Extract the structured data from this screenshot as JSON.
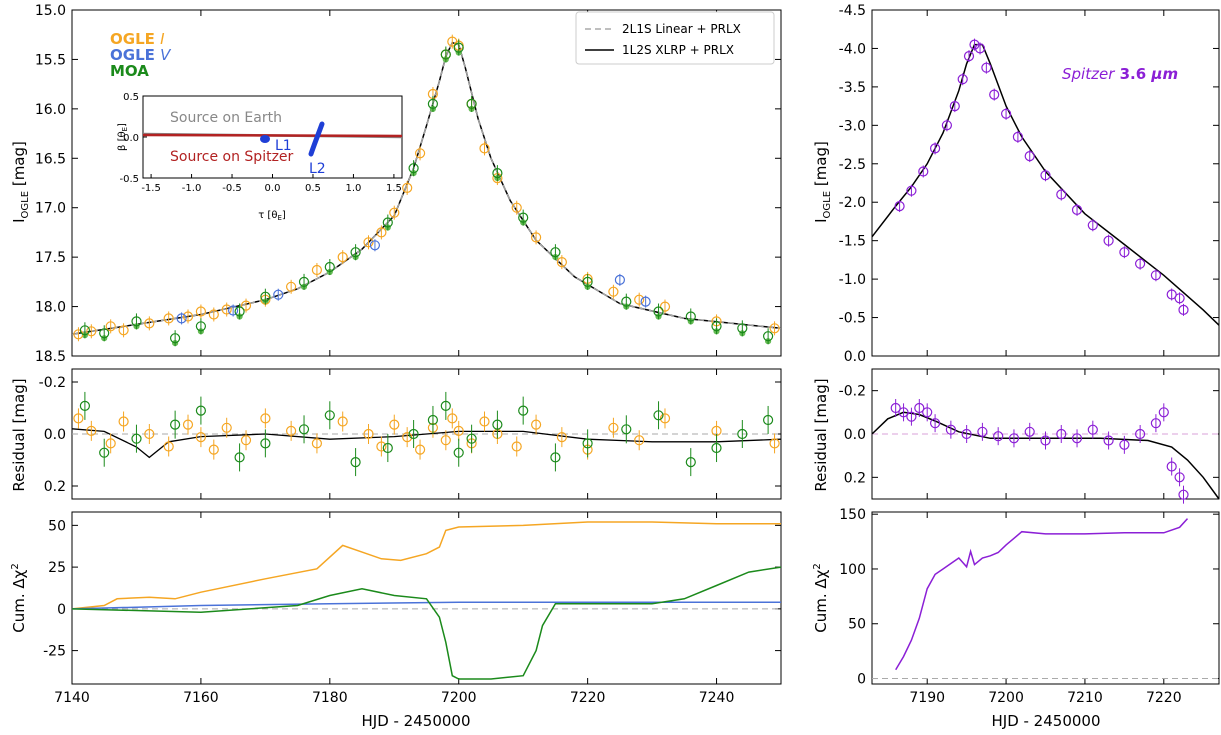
{
  "colors": {
    "ogle_i": "#f5a623",
    "ogle_v": "#4a72d8",
    "moa": "#1b8a1b",
    "moa_light": "#66bb55",
    "spitzer": "#8b1fd6",
    "model": "#000000",
    "zero_line": "#aaaaaa",
    "inset_earth": "#888888",
    "inset_spitzer": "#b22222",
    "inset_lens": "#1f3fd6"
  },
  "labels": {
    "ylabel_mag_left": "I",
    "ylabel_mag_sub": "OGLE",
    "ylabel_mag_unit": " [mag]",
    "ylabel_resid": "Residual [mag]",
    "ylabel_chi": "Cum. Δχ",
    "ylabel_chi_sup": "2",
    "xlabel": "HJD - 2450000",
    "spitzer_label_italic": "Spitzer",
    "spitzer_label_bold": " 3.6 ",
    "spitzer_label_unit": "μm"
  },
  "legend_data": {
    "ogle_i_name": "OGLE ",
    "ogle_i_band": "I",
    "ogle_v_name": "OGLE ",
    "ogle_v_band": "V",
    "moa_name": "MOA"
  },
  "legend_models": {
    "model_2l1s": "2L1S Linear + PRLX",
    "model_1l2s": "1L2S XLRP + PRLX"
  },
  "inset": {
    "ylabel": "β [θ",
    "ylabel_sub": "E",
    "xlabel": "τ [θ",
    "xlabel_sub": "E",
    "label_earth": "Source on Earth",
    "label_spitzer": "Source on Spitzer",
    "label_l1": "L1",
    "label_l2": "L2"
  },
  "chart_data": [
    {
      "type": "scatter",
      "panel": "ground light curve",
      "xlim": [
        7140,
        7250
      ],
      "ylim": [
        18.5,
        15.0
      ],
      "x_ticks": [
        7140,
        7160,
        7180,
        7200,
        7220,
        7240
      ],
      "y_ticks": [
        15.0,
        15.5,
        16.0,
        16.5,
        17.0,
        17.5,
        18.0,
        18.5
      ],
      "y_inverted": true,
      "model_1l2s": {
        "x": [
          7140,
          7150,
          7160,
          7170,
          7175,
          7180,
          7185,
          7190,
          7193,
          7195,
          7197,
          7198,
          7199,
          7200,
          7201,
          7203,
          7205,
          7208,
          7212,
          7218,
          7225,
          7235,
          7250
        ],
        "y": [
          18.28,
          18.18,
          18.08,
          17.93,
          17.82,
          17.65,
          17.42,
          17.08,
          16.6,
          16.17,
          15.72,
          15.47,
          15.33,
          15.35,
          15.58,
          16.1,
          16.5,
          16.93,
          17.33,
          17.7,
          17.97,
          18.12,
          18.22
        ]
      },
      "ogle_i_points": {
        "x": [
          7141,
          7143,
          7146,
          7148,
          7152,
          7155,
          7158,
          7160,
          7162,
          7164,
          7167,
          7170,
          7174,
          7178,
          7182,
          7186,
          7188,
          7190,
          7192,
          7194,
          7196,
          7198,
          7199,
          7200,
          7202,
          7204,
          7206,
          7209,
          7212,
          7216,
          7220,
          7224,
          7228,
          7232,
          7240,
          7249
        ],
        "y": [
          18.28,
          18.25,
          18.2,
          18.24,
          18.17,
          18.12,
          18.1,
          18.05,
          18.08,
          18.03,
          17.99,
          17.93,
          17.8,
          17.63,
          17.5,
          17.35,
          17.25,
          17.05,
          16.8,
          16.45,
          15.85,
          15.45,
          15.32,
          15.36,
          15.95,
          16.4,
          16.7,
          17.0,
          17.3,
          17.55,
          17.72,
          17.85,
          17.93,
          18.0,
          18.15,
          18.22
        ]
      },
      "ogle_v_points": {
        "x": [
          7157,
          7165,
          7172,
          7187,
          7225,
          7229
        ],
        "y": [
          18.12,
          18.04,
          17.88,
          17.38,
          17.73,
          17.95
        ]
      },
      "moa_points": {
        "x": [
          7142,
          7145,
          7150,
          7156,
          7160,
          7166,
          7170,
          7176,
          7180,
          7184,
          7189,
          7193,
          7196,
          7198,
          7200,
          7202,
          7206,
          7210,
          7215,
          7220,
          7226,
          7231,
          7236,
          7240,
          7244,
          7248
        ],
        "y": [
          18.24,
          18.27,
          18.15,
          18.32,
          18.2,
          18.05,
          17.9,
          17.75,
          17.6,
          17.45,
          17.15,
          16.6,
          15.95,
          15.45,
          15.38,
          15.95,
          16.65,
          17.1,
          17.45,
          17.75,
          17.95,
          18.05,
          18.1,
          18.2,
          18.22,
          18.3
        ]
      }
    },
    {
      "type": "line",
      "panel": "ground residuals",
      "xlim": [
        7140,
        7250
      ],
      "ylim": [
        0.25,
        -0.25
      ],
      "y_ticks": [
        -0.2,
        0.0,
        0.2
      ],
      "y_inverted": true,
      "model_difference": {
        "x": [
          7140,
          7145,
          7150,
          7152,
          7155,
          7160,
          7170,
          7180,
          7190,
          7200,
          7210,
          7220,
          7230,
          7240,
          7250
        ],
        "y": [
          -0.02,
          -0.01,
          0.05,
          0.09,
          0.03,
          0.01,
          0.0,
          0.02,
          0.01,
          -0.01,
          -0.01,
          0.02,
          0.03,
          0.03,
          0.02
        ]
      }
    },
    {
      "type": "line",
      "panel": "ground cumulative delta chi2",
      "xlim": [
        7140,
        7250
      ],
      "ylim": [
        -45,
        58
      ],
      "y_ticks": [
        -25,
        0,
        25,
        50
      ],
      "series": [
        {
          "name": "OGLE I",
          "x": [
            7140,
            7145,
            7147,
            7152,
            7156,
            7160,
            7170,
            7178,
            7182,
            7185,
            7188,
            7191,
            7195,
            7197,
            7198,
            7200,
            7210,
            7220,
            7230,
            7240,
            7250
          ],
          "y": [
            0,
            2,
            6,
            7,
            6,
            10,
            18,
            24,
            38,
            34,
            30,
            29,
            33,
            37,
            47,
            49,
            50,
            52,
            52,
            51,
            51
          ]
        },
        {
          "name": "OGLE V",
          "x": [
            7140,
            7160,
            7180,
            7200,
            7220,
            7250
          ],
          "y": [
            0,
            2,
            3,
            4,
            4,
            4
          ]
        },
        {
          "name": "MOA",
          "x": [
            7140,
            7160,
            7175,
            7180,
            7185,
            7190,
            7195,
            7197,
            7198,
            7199,
            7200,
            7205,
            7210,
            7212,
            7213,
            7215,
            7230,
            7235,
            7240,
            7245,
            7250
          ],
          "y": [
            0,
            -2,
            2,
            8,
            12,
            8,
            6,
            -5,
            -20,
            -40,
            -42,
            -42,
            -40,
            -25,
            -10,
            3,
            3,
            6,
            14,
            22,
            25
          ]
        }
      ]
    },
    {
      "type": "scatter",
      "panel": "Spitzer light curve",
      "xlim": [
        7183,
        7227
      ],
      "ylim": [
        0.0,
        -4.5
      ],
      "x_ticks": [
        7190,
        7200,
        7210,
        7220
      ],
      "y_ticks": [
        0.0,
        -0.5,
        -1.0,
        -1.5,
        -2.0,
        -2.5,
        -3.0,
        -3.5,
        -4.0,
        -4.5
      ],
      "y_inverted": true,
      "model": {
        "x": [
          7183,
          7186,
          7188,
          7190,
          7192,
          7194,
          7195,
          7196,
          7197,
          7198,
          7200,
          7202,
          7205,
          7210,
          7215,
          7220,
          7225,
          7227
        ],
        "y": [
          -1.55,
          -1.95,
          -2.2,
          -2.5,
          -2.9,
          -3.45,
          -3.8,
          -4.05,
          -4.05,
          -3.8,
          -3.25,
          -2.85,
          -2.4,
          -1.85,
          -1.45,
          -1.05,
          -0.6,
          -0.4
        ]
      },
      "points": {
        "x": [
          7186.5,
          7188,
          7189.5,
          7191,
          7192.5,
          7193.5,
          7194.5,
          7195.3,
          7196,
          7196.7,
          7197.5,
          7198.5,
          7200,
          7201.5,
          7203,
          7205,
          7207,
          7209,
          7211,
          7213,
          7215,
          7217,
          7219,
          7221,
          7222,
          7222.5
        ],
        "y": [
          -1.95,
          -2.15,
          -2.4,
          -2.7,
          -3.0,
          -3.25,
          -3.6,
          -3.9,
          -4.05,
          -4.0,
          -3.75,
          -3.4,
          -3.15,
          -2.85,
          -2.6,
          -2.35,
          -2.1,
          -1.9,
          -1.7,
          -1.5,
          -1.35,
          -1.2,
          -1.05,
          -0.8,
          -0.75,
          -0.6
        ]
      }
    },
    {
      "type": "line",
      "panel": "Spitzer residuals",
      "xlim": [
        7183,
        7227
      ],
      "ylim": [
        0.3,
        -0.3
      ],
      "y_ticks": [
        -0.2,
        0.0,
        0.2
      ],
      "y_inverted": true,
      "model_difference": {
        "x": [
          7183,
          7185,
          7187,
          7189,
          7191,
          7194,
          7198,
          7205,
          7212,
          7218,
          7221,
          7223,
          7225,
          7227
        ],
        "y": [
          0.0,
          -0.07,
          -0.1,
          -0.09,
          -0.06,
          -0.01,
          0.02,
          0.02,
          0.02,
          0.03,
          0.06,
          0.12,
          0.2,
          0.3
        ]
      },
      "points": {
        "x": [
          7186,
          7187,
          7188,
          7189,
          7190,
          7191,
          7193,
          7195,
          7197,
          7199,
          7201,
          7203,
          7205,
          7207,
          7209,
          7211,
          7213,
          7215,
          7217,
          7219,
          7220,
          7221,
          7222,
          7222.5
        ],
        "y": [
          -0.12,
          -0.1,
          -0.08,
          -0.12,
          -0.1,
          -0.05,
          -0.02,
          0.0,
          -0.01,
          0.01,
          0.02,
          -0.01,
          0.03,
          0.0,
          0.02,
          -0.02,
          0.03,
          0.05,
          0.0,
          -0.05,
          -0.1,
          0.15,
          0.2,
          0.28
        ]
      }
    },
    {
      "type": "line",
      "panel": "Spitzer cumulative delta chi2",
      "xlim": [
        7183,
        7227
      ],
      "ylim": [
        -5,
        152
      ],
      "y_ticks": [
        0,
        50,
        100,
        150
      ],
      "series": [
        {
          "name": "Spitzer",
          "x": [
            7186,
            7187,
            7188,
            7189,
            7190,
            7191,
            7192,
            7193,
            7194,
            7195,
            7195.5,
            7196,
            7197,
            7198,
            7199,
            7200,
            7201,
            7202,
            7205,
            7210,
            7215,
            7220,
            7222,
            7223
          ],
          "y": [
            8,
            20,
            35,
            55,
            82,
            95,
            100,
            105,
            110,
            102,
            116,
            104,
            110,
            112,
            115,
            122,
            128,
            134,
            132,
            132,
            133,
            133,
            138,
            146
          ]
        }
      ]
    }
  ]
}
